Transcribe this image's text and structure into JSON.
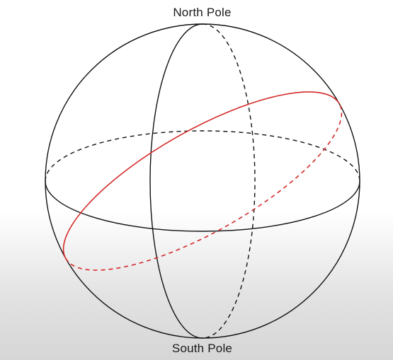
{
  "labels": {
    "north": "North Pole",
    "south": "South Pole"
  },
  "colors": {
    "outline": "#111111",
    "tilted_circle": "#d42a2a"
  }
}
